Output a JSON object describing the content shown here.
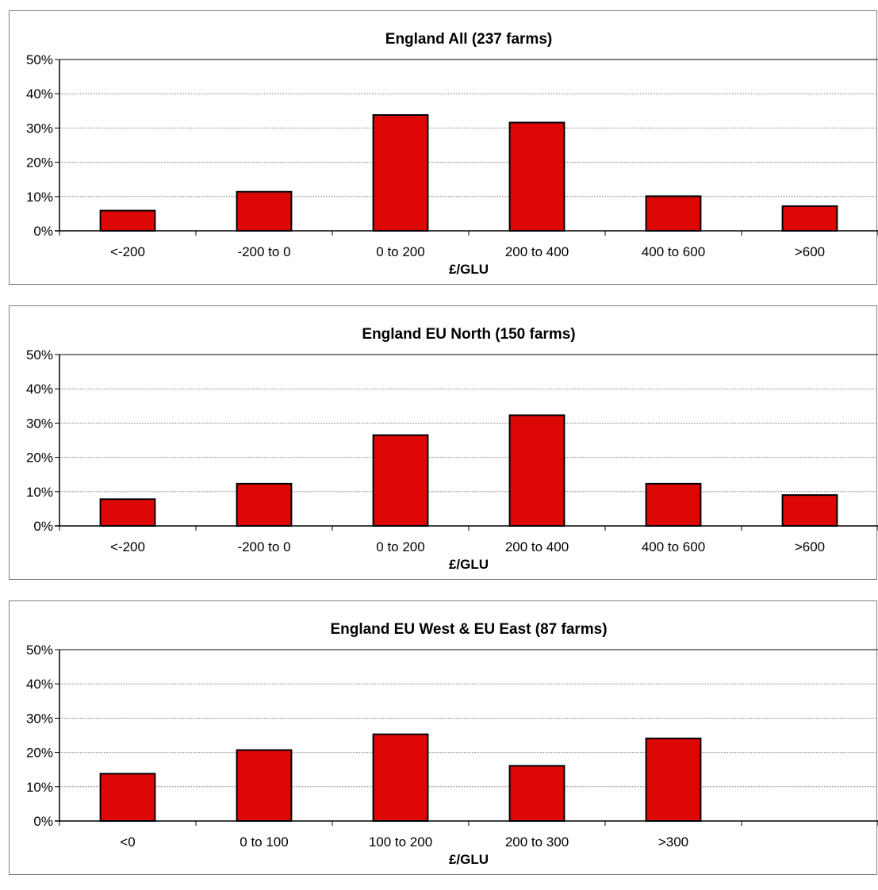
{
  "colors": {
    "bar_fill": "#dd0806",
    "bar_stroke": "#000000",
    "axis": "#808080",
    "gridline": "#808080",
    "frame": "#808080",
    "text": "#000000"
  },
  "chart_data": [
    {
      "type": "bar",
      "title": "England All (237 farms)",
      "xlabel": "£/GLU",
      "ylabel": "",
      "ylim": [
        0,
        50
      ],
      "yticks": [
        "0%",
        "10%",
        "20%",
        "30%",
        "40%",
        "50%"
      ],
      "grid": true,
      "categories": [
        "<-200",
        "-200 to 0",
        "0 to 200",
        "200 to 400",
        "400 to 600",
        ">600"
      ],
      "slots": 6,
      "values": [
        5.9,
        11.4,
        33.8,
        31.6,
        10.1,
        7.2
      ]
    },
    {
      "type": "bar",
      "title": "England EU North (150 farms)",
      "xlabel": "£/GLU",
      "ylabel": "",
      "ylim": [
        0,
        50
      ],
      "yticks": [
        "0%",
        "10%",
        "20%",
        "30%",
        "40%",
        "50%"
      ],
      "grid": true,
      "categories": [
        "<-200",
        "-200 to 0",
        "0 to 200",
        "200 to 400",
        "400 to 600",
        ">600"
      ],
      "slots": 6,
      "values": [
        7.8,
        12.3,
        26.5,
        32.3,
        12.3,
        9.0
      ]
    },
    {
      "type": "bar",
      "title": "England EU West & EU East (87 farms)",
      "xlabel": "£/GLU",
      "ylabel": "",
      "ylim": [
        0,
        50
      ],
      "yticks": [
        "0%",
        "10%",
        "20%",
        "30%",
        "40%",
        "50%"
      ],
      "grid": true,
      "categories": [
        "<0",
        "0 to 100",
        "100 to 200",
        "200 to 300",
        ">300"
      ],
      "slots": 6,
      "values": [
        13.8,
        20.7,
        25.3,
        16.1,
        24.1
      ]
    }
  ]
}
